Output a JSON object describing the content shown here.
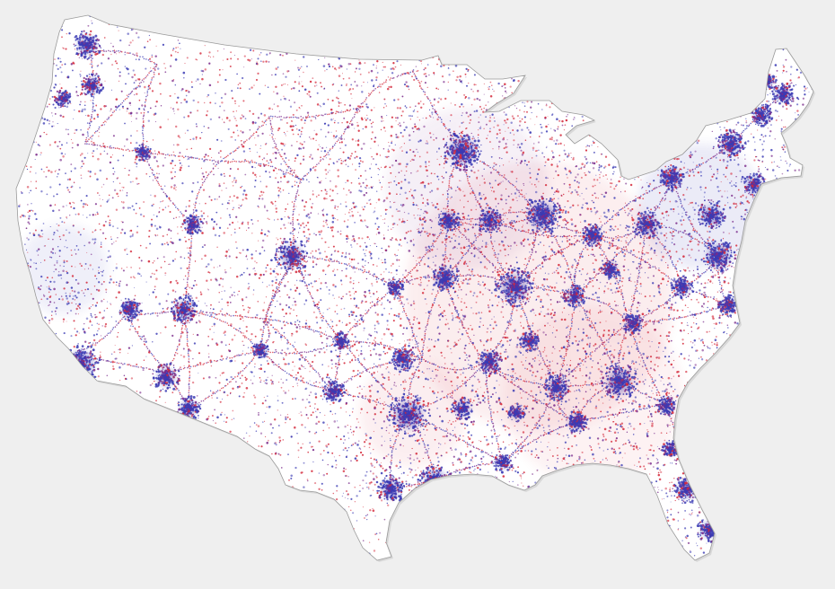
{
  "map": {
    "projection": "albers-usa-contiguous",
    "encoding": "dot-density",
    "background_color": "#efefef",
    "land_color": "#ffffff",
    "border_color": "#9a9a9a",
    "colors": {
      "blue": "#3b3bb4",
      "red": "#d4283a",
      "purple": "#7a2a8a"
    }
  }
}
